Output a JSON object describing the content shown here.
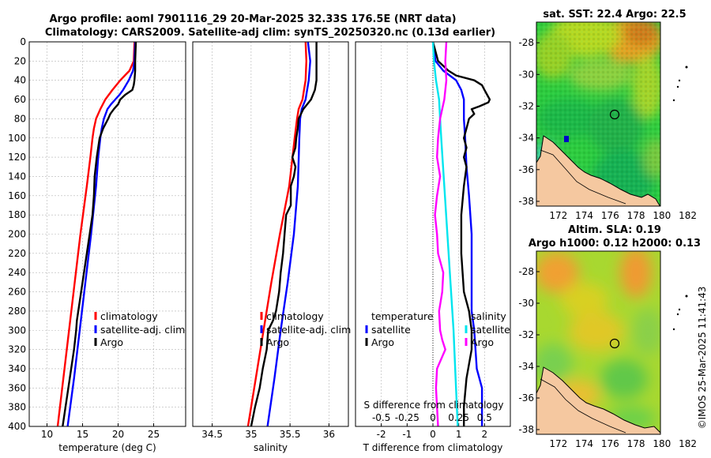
{
  "title_line1": "Argo profile: aoml 7901116_29 20-Mar-2025 32.33S 176.5E (NRT data)",
  "title_line2": "Climatology: CARS2009. Satellite-adj clim: synTS_20250320.nc (0.13d earlier)",
  "colors": {
    "climatology": "#ff0000",
    "satellite": "#0000ff",
    "argo": "#000000",
    "temp_diff": "#00e5ee",
    "sal_diff": "#ff00ff",
    "grid": "#b4b4b4",
    "land": "#f5c8a0"
  },
  "chart_data": [
    {
      "type": "line",
      "id": "temperature",
      "xlabel": "temperature (deg C)",
      "ylabel": "",
      "xlim": [
        7.5,
        29.5
      ],
      "ylim": [
        0,
        400
      ],
      "y_reversed": true,
      "xticks": [
        10,
        15,
        20,
        25
      ],
      "yticks": [
        0,
        20,
        40,
        60,
        80,
        100,
        120,
        140,
        160,
        180,
        200,
        220,
        240,
        260,
        280,
        300,
        320,
        340,
        360,
        380,
        400
      ],
      "legend": [
        "climatology",
        "satellite-adj. clim",
        "Argo"
      ],
      "series": [
        {
          "name": "climatology",
          "color": "#ff0000",
          "depth": [
            0,
            20,
            30,
            40,
            50,
            60,
            70,
            80,
            90,
            100,
            120,
            150,
            200,
            250,
            300,
            350,
            400
          ],
          "values": [
            22.3,
            22.2,
            21.6,
            20.3,
            19.2,
            18.2,
            17.5,
            16.9,
            16.6,
            16.4,
            16.1,
            15.6,
            14.7,
            13.9,
            13.1,
            12.3,
            11.5
          ]
        },
        {
          "name": "satellite-adj. clim",
          "color": "#0000ff",
          "depth": [
            0,
            20,
            30,
            40,
            50,
            55,
            60,
            65,
            70,
            80,
            90,
            100,
            120,
            150,
            200,
            250,
            300,
            350,
            400
          ],
          "values": [
            22.4,
            22.3,
            22.1,
            21.5,
            20.7,
            20.2,
            19.6,
            19.0,
            18.5,
            18.0,
            17.7,
            17.5,
            17.2,
            16.9,
            16.2,
            15.4,
            14.6,
            13.8,
            12.9
          ]
        },
        {
          "name": "Argo",
          "color": "#000000",
          "depth": [
            0,
            20,
            30,
            40,
            45,
            50,
            55,
            60,
            65,
            70,
            75,
            80,
            90,
            100,
            110,
            120,
            140,
            160,
            180,
            200,
            220,
            250,
            270,
            290,
            300,
            320,
            340,
            360,
            380,
            400
          ],
          "values": [
            22.5,
            22.4,
            22.4,
            22.3,
            22.2,
            22.0,
            21.0,
            20.3,
            20.0,
            19.4,
            18.9,
            18.6,
            17.9,
            17.4,
            17.2,
            17.0,
            16.7,
            16.6,
            16.4,
            16.0,
            15.6,
            15.0,
            14.6,
            14.2,
            14.1,
            13.8,
            13.4,
            13.0,
            12.6,
            12.2
          ]
        }
      ]
    },
    {
      "type": "line",
      "id": "salinity",
      "xlabel": "salinity",
      "ylabel": "",
      "xlim": [
        34.25,
        36.25
      ],
      "ylim": [
        0,
        400
      ],
      "y_reversed": true,
      "xticks": [
        34.5,
        35,
        35.5,
        36
      ],
      "xtick_labels": [
        "34.5",
        "35",
        "35.5",
        "36"
      ],
      "legend": [
        "climatology",
        "satellite-adj. clim",
        "Argo"
      ],
      "series": [
        {
          "name": "climatology",
          "color": "#ff0000",
          "depth": [
            0,
            20,
            40,
            60,
            70,
            80,
            100,
            150,
            200,
            250,
            300,
            350,
            400
          ],
          "values": [
            35.7,
            35.71,
            35.7,
            35.66,
            35.61,
            35.59,
            35.56,
            35.49,
            35.37,
            35.26,
            35.16,
            35.06,
            34.96
          ]
        },
        {
          "name": "satellite-adj. clim",
          "color": "#0000ff",
          "depth": [
            0,
            20,
            40,
            60,
            70,
            80,
            100,
            150,
            200,
            250,
            300,
            350,
            400
          ],
          "values": [
            35.73,
            35.76,
            35.74,
            35.7,
            35.65,
            35.63,
            35.62,
            35.6,
            35.55,
            35.47,
            35.38,
            35.3,
            35.21
          ]
        },
        {
          "name": "Argo",
          "color": "#000000",
          "depth": [
            0,
            20,
            40,
            50,
            60,
            70,
            80,
            90,
            100,
            110,
            120,
            130,
            140,
            150,
            170,
            180,
            200,
            220,
            240,
            260,
            280,
            290,
            300,
            320,
            340,
            360,
            380,
            400
          ],
          "values": [
            35.84,
            35.84,
            35.84,
            35.82,
            35.77,
            35.67,
            35.61,
            35.6,
            35.58,
            35.57,
            35.53,
            35.57,
            35.55,
            35.51,
            35.51,
            35.45,
            35.43,
            35.41,
            35.38,
            35.36,
            35.32,
            35.28,
            35.22,
            35.2,
            35.15,
            35.11,
            35.05,
            35.0
          ]
        }
      ]
    },
    {
      "type": "line",
      "id": "difference",
      "xlabel": "T difference from climatology",
      "ylabel": "",
      "xlim": [
        -3,
        3
      ],
      "ylim": [
        0,
        400
      ],
      "y_reversed": true,
      "xticks": [
        -2,
        -1,
        0,
        1,
        2
      ],
      "top_label": "S difference from climatology",
      "top_tick_labels": [
        "-0.5",
        "-0.25",
        "0",
        "0.25",
        "0.5"
      ],
      "legend_left_title": "temperature",
      "legend_right_title": "salinity",
      "legend": [
        "satellite",
        "Argo"
      ],
      "series": [
        {
          "name": "temperature satellite",
          "color": "#0000ff",
          "depth": [
            0,
            20,
            30,
            40,
            50,
            60,
            70,
            80,
            100,
            130,
            160,
            200,
            250,
            280,
            300,
            340,
            360,
            400
          ],
          "values": [
            0.0,
            0.1,
            0.4,
            0.9,
            1.1,
            1.2,
            1.2,
            1.2,
            1.25,
            1.3,
            1.4,
            1.5,
            1.5,
            1.5,
            1.6,
            1.7,
            1.9,
            1.9
          ]
        },
        {
          "name": "temperature Argo",
          "color": "#000000",
          "depth": [
            0,
            10,
            20,
            30,
            35,
            40,
            45,
            50,
            55,
            60,
            63,
            67,
            70,
            75,
            80,
            90,
            100,
            110,
            120,
            130,
            150,
            180,
            220,
            260,
            280,
            300,
            320,
            350,
            380,
            400
          ],
          "values": [
            0.0,
            0.1,
            0.2,
            0.6,
            0.9,
            1.6,
            1.9,
            2.0,
            2.1,
            2.2,
            2.15,
            1.8,
            1.5,
            1.6,
            1.4,
            1.3,
            1.2,
            1.3,
            1.2,
            1.3,
            1.2,
            1.1,
            1.1,
            1.2,
            1.4,
            1.5,
            1.5,
            1.3,
            1.2,
            1.2
          ]
        },
        {
          "name": "salinity satellite",
          "color": "#00e5ee",
          "depth": [
            0,
            20,
            40,
            60,
            80,
            100,
            150,
            200,
            250,
            300,
            350,
            400
          ],
          "values": [
            0.0,
            0.01,
            0.03,
            0.06,
            0.07,
            0.08,
            0.11,
            0.14,
            0.17,
            0.2,
            0.22,
            0.24
          ]
        },
        {
          "name": "salinity Argo",
          "color": "#ff00ff",
          "depth": [
            0,
            20,
            40,
            60,
            80,
            100,
            120,
            140,
            160,
            180,
            200,
            220,
            240,
            260,
            280,
            300,
            310,
            320,
            340,
            360,
            380,
            400
          ],
          "values": [
            0.13,
            0.12,
            0.13,
            0.11,
            0.07,
            0.05,
            0.04,
            0.07,
            0.04,
            0.02,
            0.04,
            0.05,
            0.1,
            0.09,
            0.06,
            0.07,
            0.09,
            0.12,
            0.04,
            0.03,
            0.04,
            0.05
          ]
        }
      ]
    }
  ],
  "maps": [
    {
      "id": "sst",
      "title": "sat. SST: 22.4 Argo: 22.5",
      "title_line2": ""
    },
    {
      "id": "sla",
      "title": "Altim. SLA: 0.19",
      "title_line2": "Argo h1000: 0.12 h2000: 0.13"
    }
  ],
  "map_axes": {
    "lat_ticks": [
      -28,
      -30,
      -32,
      -34,
      -36,
      -38
    ],
    "lon_ticks": [
      172,
      174,
      176,
      178,
      180,
      182
    ],
    "lon_range": [
      170.3,
      182.7
    ],
    "lat_range": [
      -26.7,
      -38.3
    ]
  },
  "argo_position": {
    "lon": 176.5,
    "lat": -32.33
  },
  "credit": "©IMOS 25-Mar-2025 11:41:43"
}
